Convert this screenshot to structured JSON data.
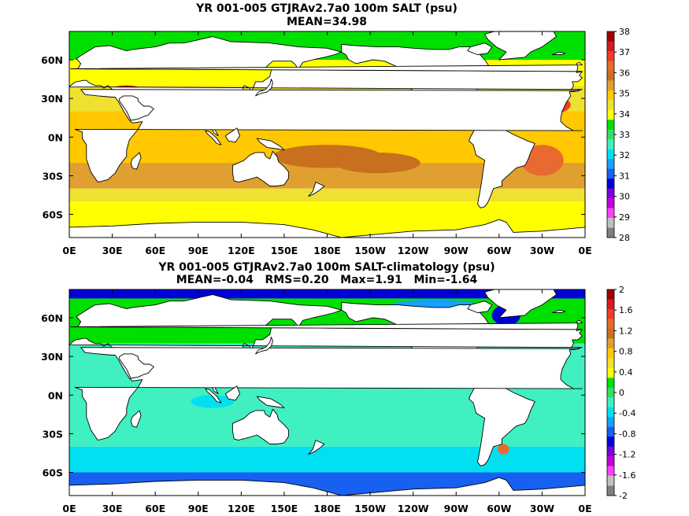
{
  "chart_data": [
    {
      "type": "heatmap",
      "title": "YR 001-005 GTJRAv2.7a0 100m SALT (psu)",
      "subtitle": "MEAN=34.98",
      "x_ticks": [
        "0E",
        "30E",
        "60E",
        "90E",
        "120E",
        "150E",
        "180E",
        "150W",
        "120W",
        "90W",
        "60W",
        "30W",
        "0E"
      ],
      "y_ticks": [
        "60N",
        "30N",
        "0N",
        "30S",
        "60S"
      ],
      "colorbar": {
        "labels": [
          "38",
          "37",
          "36",
          "35",
          "34",
          "33",
          "32",
          "31",
          "30",
          "29",
          "28"
        ],
        "colors": [
          "#a00000",
          "#d81c1c",
          "#f03c28",
          "#e86a30",
          "#c8701e",
          "#e0a030",
          "#ffc800",
          "#f0e030",
          "#ffff00",
          "#00e000",
          "#30e060",
          "#40f0c0",
          "#00e0f0",
          "#18a0ff",
          "#1860f0",
          "#0000d8",
          "#7800d8",
          "#c000e0",
          "#ff40ff",
          "#c0c0c0",
          "#808080"
        ]
      },
      "bands": [
        {
          "lat_min": 60,
          "lat_max": 82,
          "value": 33.5
        },
        {
          "lat_min": 40,
          "lat_max": 60,
          "value": 34.0
        },
        {
          "lat_min": 20,
          "lat_max": 40,
          "value": 34.6
        },
        {
          "lat_min": -20,
          "lat_max": 20,
          "value": 35.1
        },
        {
          "lat_min": -40,
          "lat_max": -20,
          "value": 35.3
        },
        {
          "lat_min": -50,
          "lat_max": -40,
          "value": 34.6
        },
        {
          "lat_min": -78,
          "lat_max": -50,
          "value": 34.0
        }
      ],
      "features": [
        {
          "lon": 180,
          "lat": -15,
          "rx": 38,
          "ry": 9,
          "value": 35.8
        },
        {
          "lon": 215,
          "lat": -20,
          "rx": 30,
          "ry": 8,
          "value": 36.0
        },
        {
          "lon": 320,
          "lat": 25,
          "rx": 30,
          "ry": 10,
          "value": 36.7
        },
        {
          "lon": 330,
          "lat": -18,
          "rx": 15,
          "ry": 12,
          "value": 36.3
        },
        {
          "lon": 190,
          "lat": 25,
          "rx": 40,
          "ry": 7,
          "value": 34.9
        },
        {
          "lon": 72,
          "lat": 18,
          "rx": 8,
          "ry": 10,
          "value": 36.2
        },
        {
          "lon": 40,
          "lat": 36,
          "rx": 12,
          "ry": 4,
          "value": 37.8
        }
      ]
    },
    {
      "type": "heatmap",
      "title": "YR 001-005 GTJRAv2.7a0 100m SALT-climatology (psu)",
      "subtitle": "MEAN=-0.04   RMS=0.20   Max=1.91   Min=-1.64",
      "x_ticks": [
        "0E",
        "30E",
        "60E",
        "90E",
        "120E",
        "150E",
        "180E",
        "150W",
        "120W",
        "90W",
        "60W",
        "30W",
        "0E"
      ],
      "y_ticks": [
        "60N",
        "30N",
        "0N",
        "30S",
        "60S"
      ],
      "colorbar": {
        "labels": [
          "2",
          "1.6",
          "1.2",
          "0.8",
          "0.4",
          "0",
          "-0.4",
          "-0.8",
          "-1.2",
          "-1.6",
          "-2"
        ],
        "colors": [
          "#a00000",
          "#d81c1c",
          "#f03c28",
          "#e86a30",
          "#c8701e",
          "#e0a030",
          "#ffc800",
          "#f0e030",
          "#ffff00",
          "#00e000",
          "#30e060",
          "#40f0c0",
          "#00e0f0",
          "#18a0ff",
          "#1860f0",
          "#0000d8",
          "#7800d8",
          "#c000e0",
          "#ff40ff",
          "#c0c0c0",
          "#808080"
        ]
      },
      "bands": [
        {
          "lat_min": 75,
          "lat_max": 82,
          "value": -0.9
        },
        {
          "lat_min": 40,
          "lat_max": 75,
          "value": 0.1
        },
        {
          "lat_min": -40,
          "lat_max": 40,
          "value": -0.1
        },
        {
          "lat_min": -60,
          "lat_max": -40,
          "value": -0.3
        },
        {
          "lat_min": -78,
          "lat_max": -60,
          "value": -0.7
        }
      ],
      "features": [
        {
          "lon": 300,
          "lat": 42,
          "rx": 8,
          "ry": 3,
          "value": 1.0
        },
        {
          "lon": 303,
          "lat": -42,
          "rx": 4,
          "ry": 4,
          "value": 1.4
        },
        {
          "lon": 305,
          "lat": 62,
          "rx": 10,
          "ry": 8,
          "value": -0.9
        },
        {
          "lon": 255,
          "lat": 70,
          "rx": 30,
          "ry": 4,
          "value": -0.6
        },
        {
          "lon": 180,
          "lat": 45,
          "rx": 25,
          "ry": 6,
          "value": 0.3
        },
        {
          "lon": 100,
          "lat": -5,
          "rx": 15,
          "ry": 5,
          "value": -0.3
        }
      ]
    }
  ]
}
